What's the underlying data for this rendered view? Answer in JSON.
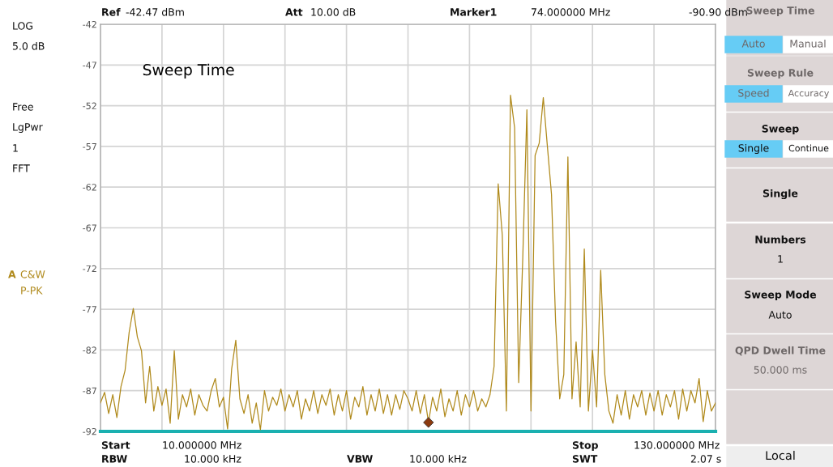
{
  "chart_data": {
    "type": "line",
    "title": "Sweep Time",
    "categories": [
      null,
      null,
      null,
      null,
      null,
      null,
      null,
      null,
      null,
      null,
      null,
      null,
      null,
      null,
      null,
      null,
      null,
      null,
      null,
      null,
      null,
      null,
      null,
      null,
      null,
      null,
      null,
      null,
      null,
      null,
      null,
      null,
      null,
      null,
      null,
      null,
      null,
      null,
      null,
      null,
      null,
      null,
      null,
      null,
      null,
      null,
      null,
      null,
      null,
      null,
      null,
      null,
      null,
      null,
      null,
      null,
      null,
      null,
      null,
      null,
      null,
      null,
      null,
      null,
      null,
      null,
      null,
      null,
      null,
      null,
      null,
      null,
      null,
      null,
      null,
      null,
      null,
      null,
      null,
      null,
      null,
      null,
      null,
      null,
      null,
      null,
      null,
      null,
      null,
      null,
      null,
      null,
      null,
      null,
      null,
      null,
      null,
      null,
      null,
      null,
      null,
      null,
      null,
      null,
      null,
      null,
      null,
      null,
      null,
      null,
      null,
      null,
      null,
      null,
      null,
      null,
      null,
      null,
      null,
      null,
      null,
      null,
      null,
      null,
      null,
      null,
      null,
      null,
      null,
      null,
      null,
      null,
      null,
      null,
      null,
      null,
      null,
      null,
      null,
      null,
      null,
      null,
      null,
      null,
      null,
      null,
      null,
      null,
      null,
      null,
      null
    ],
    "ylim": [
      -92,
      -42
    ],
    "yticks": [
      {
        "value": -42,
        "label": "-42"
      },
      {
        "value": -47,
        "label": "-47"
      },
      {
        "value": -52,
        "label": "-52"
      },
      {
        "value": -57,
        "label": "-57"
      },
      {
        "value": -62,
        "label": "-62"
      },
      {
        "value": -67,
        "label": "-67"
      },
      {
        "value": -72,
        "label": "-72"
      },
      {
        "value": -77,
        "label": "-77"
      },
      {
        "value": -82,
        "label": "-82"
      },
      {
        "value": -87,
        "label": "-87"
      },
      {
        "value": -92,
        "label": "-92"
      }
    ],
    "tick_labels": "y",
    "grid": true,
    "series": [
      {
        "color": "#b08a1c",
        "values": [
          -88.5,
          -87.2,
          -89.8,
          -87.5,
          -90.3,
          -86.5,
          -84.5,
          -79.8,
          -76.9,
          -80.4,
          -82.1,
          -88.5,
          -84.0,
          -89.5,
          -86.5,
          -88.8,
          -86.8,
          -91.0,
          -82.1,
          -90.5,
          -87.5,
          -89.0,
          -86.8,
          -90.0,
          -87.5,
          -88.8,
          -89.5,
          -87.0,
          -85.5,
          -89.0,
          -87.8,
          -91.7,
          -84.3,
          -80.8,
          -88.0,
          -89.8,
          -87.5,
          -91.0,
          -88.5,
          -91.8,
          -87.0,
          -89.5,
          -87.8,
          -88.8,
          -86.8,
          -89.5,
          -87.5,
          -89.0,
          -87.0,
          -90.5,
          -88.0,
          -89.5,
          -87.0,
          -89.8,
          -87.5,
          -88.8,
          -86.8,
          -90.0,
          -87.5,
          -89.5,
          -87.0,
          -90.5,
          -87.8,
          -89.0,
          -86.5,
          -90.0,
          -87.5,
          -89.5,
          -86.8,
          -89.8,
          -87.5,
          -90.0,
          -87.5,
          -89.3,
          -87.0,
          -88.0,
          -89.5,
          -87.0,
          -89.8,
          -87.5,
          -90.9,
          -87.8,
          -89.5,
          -86.8,
          -90.2,
          -88.0,
          -89.5,
          -87.0,
          -90.0,
          -87.5,
          -89.0,
          -87.0,
          -89.5,
          -88.0,
          -89.0,
          -87.5,
          -84.0,
          -61.6,
          -67.9,
          -89.5,
          -50.7,
          -54.7,
          -86.0,
          -70.6,
          -52.5,
          -89.5,
          -58.1,
          -56.6,
          -51.0,
          -57.0,
          -62.9,
          -78.5,
          -88.0,
          -85.0,
          -58.3,
          -88.0,
          -81.0,
          -89.0,
          -69.6,
          -89.5,
          -82.0,
          -89.0,
          -72.2,
          -85.0,
          -89.5,
          -91.0,
          -87.5,
          -90.0,
          -87.0,
          -90.5,
          -87.5,
          -89.0,
          -87.0,
          -90.0,
          -87.3,
          -89.5,
          -87.0,
          -90.0,
          -87.5,
          -89.0,
          -87.0,
          -90.5,
          -86.8,
          -89.5,
          -87.0,
          -88.5,
          -85.5,
          -90.8,
          -87.0,
          -89.5,
          -88.5
        ]
      },
      {
        "type": "scatter",
        "color": "#8b3a10",
        "marker": "diamond",
        "values": [
          null,
          null,
          null,
          null,
          null,
          null,
          null,
          null,
          null,
          null,
          null,
          null,
          null,
          null,
          null,
          null,
          null,
          null,
          null,
          null,
          null,
          null,
          null,
          null,
          null,
          null,
          null,
          null,
          null,
          null,
          null,
          null,
          null,
          null,
          null,
          null,
          null,
          null,
          null,
          null,
          null,
          null,
          null,
          null,
          null,
          null,
          null,
          null,
          null,
          null,
          null,
          null,
          null,
          null,
          null,
          null,
          null,
          null,
          null,
          null,
          null,
          null,
          null,
          null,
          null,
          null,
          null,
          null,
          null,
          null,
          null,
          null,
          null,
          null,
          null,
          null,
          null,
          null,
          null,
          null,
          -90.9,
          null,
          null,
          null,
          null,
          null,
          null,
          null,
          null,
          null,
          null,
          null,
          null,
          null,
          null,
          null,
          null,
          null,
          null,
          null,
          null,
          null,
          null,
          null,
          null,
          null,
          null,
          null,
          null,
          null,
          null,
          null,
          null,
          null,
          null,
          null,
          null,
          null,
          null,
          null,
          null,
          null,
          null,
          null,
          null,
          null,
          null,
          null,
          null,
          null,
          null,
          null,
          null,
          null,
          null,
          null,
          null,
          null,
          null,
          null,
          null,
          null,
          null,
          null,
          null,
          null,
          null,
          null,
          null,
          null,
          null
        ]
      }
    ],
    "annotations": [
      "LOG",
      "5.0 dB",
      "Free",
      "LgPwr",
      "1",
      "FFT",
      "A",
      "C&W",
      "P-PK",
      "Ref",
      "-42.47 dBm",
      "Att",
      "10.00 dB",
      "Marker1",
      "74.000000 MHz",
      "-90.90 dBm",
      "Start",
      "10.000000 MHz",
      "RBW",
      "10.000 kHz",
      "VBW",
      "10.000 kHz",
      "Stop",
      "130.000000 MHz",
      "SWT",
      "2.07 s",
      "Sweep Time",
      "Auto",
      "Manual",
      "Sweep Rule",
      "Speed",
      "Accuracy",
      "Sweep",
      "Single",
      "Continue",
      "Single",
      "Numbers",
      "1",
      "Sweep Mode",
      "Auto",
      "QPD Dwell Time",
      "50.000 ms",
      "Local"
    ]
  }
}
